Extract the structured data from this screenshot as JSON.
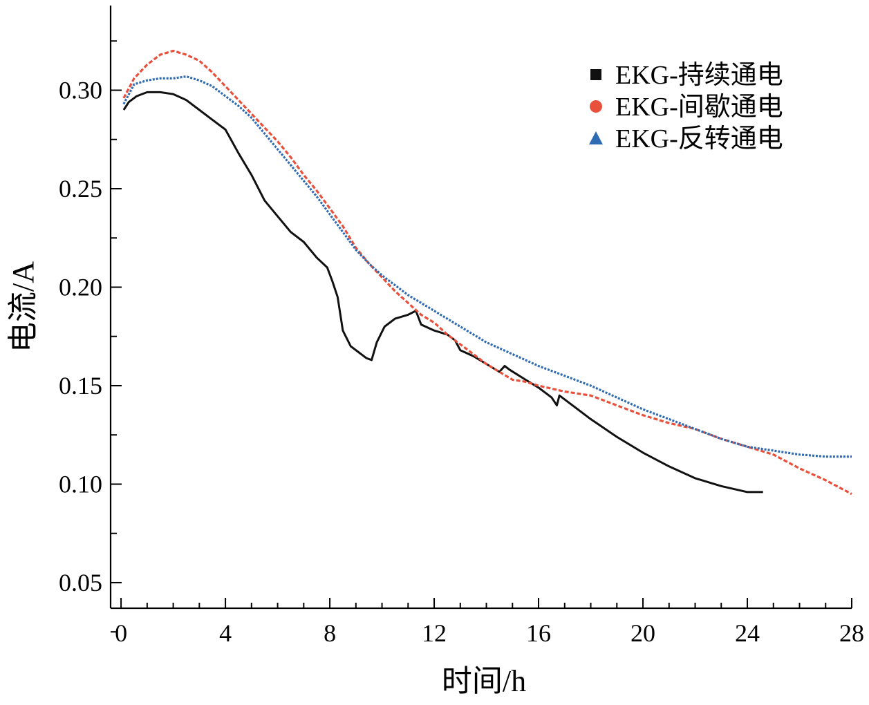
{
  "chart_data": {
    "type": "line",
    "title": "",
    "xlabel": "时间/h",
    "ylabel": "电流/A",
    "xlim": [
      -0.4,
      28
    ],
    "ylim": [
      0.037,
      0.343
    ],
    "x_ticks": [
      0,
      4,
      8,
      12,
      16,
      20,
      24,
      28
    ],
    "y_ticks": [
      0.05,
      0.1,
      0.15,
      0.2,
      0.25,
      0.3
    ],
    "x_tick_labels": [
      "0",
      "4",
      "8",
      "12",
      "16",
      "20",
      "24",
      "28"
    ],
    "y_tick_labels": [
      "0.05",
      "0.10",
      "0.15",
      "0.20",
      "0.25",
      "0.30"
    ],
    "grid": false,
    "legend_position": "top-right",
    "series": [
      {
        "name": "EKG-持续通电",
        "marker": "square",
        "color": "#111111",
        "x": [
          0.1,
          0.3,
          0.6,
          1.0,
          1.5,
          2.0,
          2.5,
          3.0,
          3.5,
          4.0,
          4.5,
          5.0,
          5.5,
          6.0,
          6.5,
          7.0,
          7.5,
          7.9,
          8.1,
          8.3,
          8.5,
          8.8,
          9.1,
          9.4,
          9.6,
          9.8,
          10.1,
          10.5,
          11.0,
          11.3,
          11.5,
          12.0,
          12.5,
          12.8,
          13.0,
          13.5,
          14.0,
          14.5,
          14.7,
          14.9,
          15.5,
          16.0,
          16.5,
          16.7,
          16.8,
          17.0,
          17.5,
          18.0,
          19.0,
          20.0,
          21.0,
          22.0,
          23.0,
          24.0,
          24.6
        ],
        "y": [
          0.29,
          0.294,
          0.297,
          0.299,
          0.299,
          0.298,
          0.295,
          0.29,
          0.285,
          0.28,
          0.268,
          0.257,
          0.244,
          0.236,
          0.228,
          0.223,
          0.215,
          0.21,
          0.203,
          0.195,
          0.178,
          0.17,
          0.167,
          0.164,
          0.163,
          0.172,
          0.18,
          0.184,
          0.186,
          0.188,
          0.181,
          0.178,
          0.176,
          0.173,
          0.168,
          0.165,
          0.161,
          0.157,
          0.16,
          0.158,
          0.153,
          0.149,
          0.144,
          0.14,
          0.145,
          0.143,
          0.138,
          0.133,
          0.124,
          0.116,
          0.109,
          0.103,
          0.099,
          0.096,
          0.096
        ]
      },
      {
        "name": "EKG-间歇通电",
        "marker": "circle",
        "color": "#e8503c",
        "x": [
          0.1,
          0.5,
          1.0,
          1.5,
          2.0,
          2.5,
          3.0,
          3.5,
          4.0,
          4.5,
          5.0,
          5.5,
          6.0,
          6.5,
          7.0,
          7.5,
          8.0,
          8.5,
          9.0,
          9.5,
          10.0,
          10.5,
          11.0,
          11.5,
          12.0,
          12.5,
          13.0,
          13.5,
          14.0,
          14.5,
          15.0,
          15.5,
          16.0,
          17.0,
          18.0,
          19.0,
          20.0,
          21.0,
          22.0,
          23.0,
          24.0,
          25.0,
          26.0,
          27.0,
          28.0
        ],
        "y": [
          0.296,
          0.306,
          0.313,
          0.318,
          0.32,
          0.318,
          0.315,
          0.309,
          0.302,
          0.295,
          0.288,
          0.281,
          0.274,
          0.266,
          0.257,
          0.249,
          0.24,
          0.231,
          0.22,
          0.212,
          0.205,
          0.198,
          0.192,
          0.186,
          0.182,
          0.176,
          0.171,
          0.166,
          0.161,
          0.157,
          0.153,
          0.152,
          0.15,
          0.147,
          0.145,
          0.14,
          0.135,
          0.131,
          0.128,
          0.123,
          0.119,
          0.115,
          0.108,
          0.102,
          0.095
        ]
      },
      {
        "name": "EKG-反转通电",
        "marker": "triangle",
        "color": "#2f6bb3",
        "x": [
          0.1,
          0.5,
          1.0,
          1.5,
          2.0,
          2.5,
          3.0,
          3.5,
          4.0,
          4.5,
          5.0,
          5.5,
          6.0,
          6.5,
          7.0,
          7.5,
          8.0,
          8.5,
          9.0,
          9.5,
          10.0,
          10.5,
          11.0,
          11.5,
          12.0,
          12.5,
          13.0,
          13.5,
          14.0,
          14.5,
          15.0,
          15.5,
          16.0,
          17.0,
          18.0,
          19.0,
          20.0,
          21.0,
          22.0,
          23.0,
          24.0,
          25.0,
          26.0,
          27.0,
          28.0
        ],
        "y": [
          0.293,
          0.303,
          0.305,
          0.306,
          0.306,
          0.307,
          0.305,
          0.302,
          0.297,
          0.292,
          0.286,
          0.278,
          0.27,
          0.262,
          0.254,
          0.246,
          0.237,
          0.228,
          0.219,
          0.212,
          0.206,
          0.201,
          0.196,
          0.192,
          0.188,
          0.184,
          0.18,
          0.176,
          0.172,
          0.169,
          0.166,
          0.163,
          0.16,
          0.155,
          0.15,
          0.144,
          0.138,
          0.133,
          0.128,
          0.123,
          0.119,
          0.117,
          0.115,
          0.114,
          0.114
        ]
      }
    ]
  }
}
